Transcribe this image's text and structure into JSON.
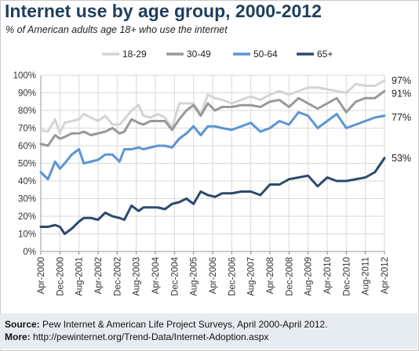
{
  "title": "Internet use by age group, 2000-2012",
  "subtitle": "% of American adults age 18+ who use the internet",
  "footer": {
    "source_label": "Source:",
    "source_text": "Pew Internet & American Life Project Surveys, April 2000-April 2012.",
    "more_label": "More:",
    "more_text": "http://pewinternet.org/Trend-Data/Internet-Adoption.aspx"
  },
  "chart_data": {
    "type": "line",
    "title": "Internet use by age group, 2000-2012",
    "subtitle": "% of American adults age 18+ who use the internet",
    "xlabel": "",
    "ylabel": "",
    "ylim": [
      0,
      100
    ],
    "y_ticks": [
      "0%",
      "10%",
      "20%",
      "30%",
      "40%",
      "50%",
      "60%",
      "70%",
      "80%",
      "90%",
      "100%"
    ],
    "x_range": [
      "2000-04",
      "2012-04"
    ],
    "x_ticks": [
      "Apr-2000",
      "Dec-2000",
      "Aug-2001",
      "Apr-2002",
      "Dec-2002",
      "Aug-2003",
      "Apr-2004",
      "Dec-2004",
      "Aug-2005",
      "Apr-2006",
      "Dec-2006",
      "Aug-2007",
      "Apr-2008",
      "Dec-2008",
      "Aug-2009",
      "Apr-2010",
      "Dec-2010",
      "Aug-2011",
      "Apr-2012"
    ],
    "grid": true,
    "legend_position": "top",
    "series": [
      {
        "name": "18-29",
        "color": "#d4d4d4",
        "end_label": "97%",
        "points": [
          [
            "2000-04",
            69
          ],
          [
            "2000-07",
            68
          ],
          [
            "2000-10",
            75
          ],
          [
            "2000-12",
            67
          ],
          [
            "2001-02",
            73
          ],
          [
            "2001-05",
            74
          ],
          [
            "2001-08",
            75
          ],
          [
            "2001-10",
            78
          ],
          [
            "2002-01",
            76
          ],
          [
            "2002-04",
            74
          ],
          [
            "2002-07",
            77
          ],
          [
            "2002-10",
            72
          ],
          [
            "2003-01",
            72
          ],
          [
            "2003-03",
            75
          ],
          [
            "2003-06",
            80
          ],
          [
            "2003-09",
            83
          ],
          [
            "2003-11",
            77
          ],
          [
            "2004-02",
            76
          ],
          [
            "2004-05",
            78
          ],
          [
            "2004-08",
            76
          ],
          [
            "2004-11",
            70
          ],
          [
            "2005-02",
            84
          ],
          [
            "2005-05",
            84
          ],
          [
            "2005-08",
            84
          ],
          [
            "2005-11",
            78
          ],
          [
            "2006-02",
            89
          ],
          [
            "2006-05",
            87
          ],
          [
            "2006-08",
            86
          ],
          [
            "2006-12",
            84
          ],
          [
            "2007-04",
            86
          ],
          [
            "2007-08",
            88
          ],
          [
            "2007-12",
            86
          ],
          [
            "2008-04",
            89
          ],
          [
            "2008-08",
            91
          ],
          [
            "2008-12",
            89
          ],
          [
            "2009-04",
            91
          ],
          [
            "2009-08",
            93
          ],
          [
            "2009-12",
            93
          ],
          [
            "2010-04",
            92
          ],
          [
            "2010-08",
            91
          ],
          [
            "2010-12",
            90
          ],
          [
            "2011-04",
            95
          ],
          [
            "2011-08",
            94
          ],
          [
            "2011-12",
            94
          ],
          [
            "2012-04",
            97
          ]
        ]
      },
      {
        "name": "30-49",
        "color": "#999999",
        "end_label": "91%",
        "points": [
          [
            "2000-04",
            61
          ],
          [
            "2000-07",
            60
          ],
          [
            "2000-10",
            66
          ],
          [
            "2000-12",
            64
          ],
          [
            "2001-02",
            65
          ],
          [
            "2001-05",
            67
          ],
          [
            "2001-08",
            67
          ],
          [
            "2001-10",
            68
          ],
          [
            "2002-01",
            66
          ],
          [
            "2002-04",
            67
          ],
          [
            "2002-07",
            68
          ],
          [
            "2002-10",
            70
          ],
          [
            "2003-01",
            67
          ],
          [
            "2003-03",
            68
          ],
          [
            "2003-06",
            75
          ],
          [
            "2003-09",
            73
          ],
          [
            "2003-11",
            72
          ],
          [
            "2004-02",
            74
          ],
          [
            "2004-05",
            74
          ],
          [
            "2004-08",
            74
          ],
          [
            "2004-11",
            69
          ],
          [
            "2005-02",
            75
          ],
          [
            "2005-05",
            80
          ],
          [
            "2005-08",
            83
          ],
          [
            "2005-11",
            77
          ],
          [
            "2006-02",
            84
          ],
          [
            "2006-05",
            80
          ],
          [
            "2006-08",
            82
          ],
          [
            "2006-12",
            82
          ],
          [
            "2007-04",
            83
          ],
          [
            "2007-08",
            83
          ],
          [
            "2007-12",
            82
          ],
          [
            "2008-04",
            85
          ],
          [
            "2008-08",
            86
          ],
          [
            "2008-12",
            82
          ],
          [
            "2009-04",
            87
          ],
          [
            "2009-08",
            84
          ],
          [
            "2009-12",
            81
          ],
          [
            "2010-04",
            84
          ],
          [
            "2010-08",
            87
          ],
          [
            "2010-12",
            79
          ],
          [
            "2011-04",
            85
          ],
          [
            "2011-08",
            87
          ],
          [
            "2011-12",
            87
          ],
          [
            "2012-04",
            91
          ]
        ]
      },
      {
        "name": "50-64",
        "color": "#5b95d3",
        "end_label": "77%",
        "points": [
          [
            "2000-04",
            45
          ],
          [
            "2000-07",
            41
          ],
          [
            "2000-10",
            51
          ],
          [
            "2000-12",
            47
          ],
          [
            "2001-02",
            50
          ],
          [
            "2001-05",
            55
          ],
          [
            "2001-08",
            58
          ],
          [
            "2001-10",
            50
          ],
          [
            "2002-01",
            51
          ],
          [
            "2002-04",
            52
          ],
          [
            "2002-07",
            55
          ],
          [
            "2002-10",
            55
          ],
          [
            "2003-01",
            51
          ],
          [
            "2003-03",
            58
          ],
          [
            "2003-06",
            58
          ],
          [
            "2003-09",
            59
          ],
          [
            "2003-11",
            58
          ],
          [
            "2004-02",
            59
          ],
          [
            "2004-05",
            60
          ],
          [
            "2004-08",
            60
          ],
          [
            "2004-11",
            59
          ],
          [
            "2005-02",
            64
          ],
          [
            "2005-05",
            67
          ],
          [
            "2005-08",
            71
          ],
          [
            "2005-11",
            66
          ],
          [
            "2006-02",
            71
          ],
          [
            "2006-05",
            71
          ],
          [
            "2006-08",
            70
          ],
          [
            "2006-12",
            69
          ],
          [
            "2007-04",
            71
          ],
          [
            "2007-08",
            73
          ],
          [
            "2007-12",
            68
          ],
          [
            "2008-04",
            70
          ],
          [
            "2008-08",
            74
          ],
          [
            "2008-12",
            72
          ],
          [
            "2009-04",
            79
          ],
          [
            "2009-08",
            77
          ],
          [
            "2009-12",
            70
          ],
          [
            "2010-04",
            74
          ],
          [
            "2010-08",
            78
          ],
          [
            "2010-12",
            70
          ],
          [
            "2011-04",
            72
          ],
          [
            "2011-08",
            74
          ],
          [
            "2011-12",
            76
          ],
          [
            "2012-04",
            77
          ]
        ]
      },
      {
        "name": "65+",
        "color": "#2c4a6e",
        "end_label": "53%",
        "points": [
          [
            "2000-04",
            14
          ],
          [
            "2000-07",
            14
          ],
          [
            "2000-10",
            15
          ],
          [
            "2000-12",
            14
          ],
          [
            "2001-02",
            10
          ],
          [
            "2001-05",
            13
          ],
          [
            "2001-08",
            17
          ],
          [
            "2001-10",
            19
          ],
          [
            "2002-01",
            19
          ],
          [
            "2002-04",
            18
          ],
          [
            "2002-07",
            22
          ],
          [
            "2002-10",
            20
          ],
          [
            "2003-01",
            19
          ],
          [
            "2003-03",
            18
          ],
          [
            "2003-06",
            26
          ],
          [
            "2003-09",
            23
          ],
          [
            "2003-11",
            25
          ],
          [
            "2004-02",
            25
          ],
          [
            "2004-05",
            25
          ],
          [
            "2004-08",
            24
          ],
          [
            "2004-11",
            27
          ],
          [
            "2005-02",
            28
          ],
          [
            "2005-05",
            30
          ],
          [
            "2005-08",
            27
          ],
          [
            "2005-11",
            34
          ],
          [
            "2006-02",
            32
          ],
          [
            "2006-05",
            31
          ],
          [
            "2006-08",
            33
          ],
          [
            "2006-12",
            33
          ],
          [
            "2007-04",
            34
          ],
          [
            "2007-08",
            34
          ],
          [
            "2007-12",
            32
          ],
          [
            "2008-04",
            38
          ],
          [
            "2008-08",
            38
          ],
          [
            "2008-12",
            41
          ],
          [
            "2009-04",
            42
          ],
          [
            "2009-08",
            43
          ],
          [
            "2009-12",
            37
          ],
          [
            "2010-04",
            42
          ],
          [
            "2010-08",
            40
          ],
          [
            "2010-12",
            40
          ],
          [
            "2011-04",
            41
          ],
          [
            "2011-08",
            42
          ],
          [
            "2011-12",
            45
          ],
          [
            "2012-04",
            53
          ]
        ]
      }
    ]
  }
}
